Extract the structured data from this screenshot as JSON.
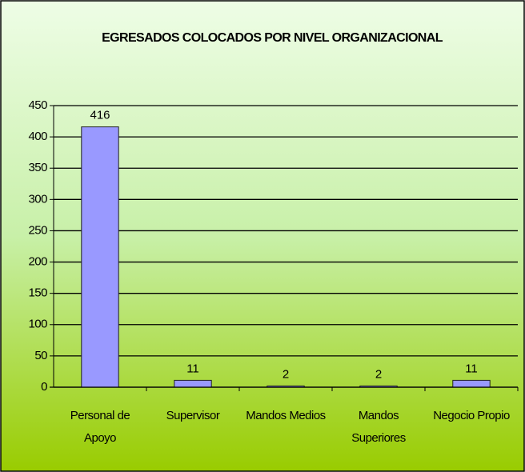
{
  "chart_data": {
    "type": "bar",
    "title": "EGRESADOS COLOCADOS POR NIVEL ORGANIZACIONAL",
    "categories": [
      "Personal de Apoyo",
      "Supervisor",
      "Mandos Medios",
      "Mandos Superiores",
      "Negocio Propio"
    ],
    "values": [
      416,
      11,
      2,
      2,
      11
    ],
    "color": "#9999ff",
    "ylim": [
      0,
      450
    ],
    "yticks": [
      0,
      50,
      100,
      150,
      200,
      250,
      300,
      350,
      400,
      450
    ],
    "grid": true
  }
}
